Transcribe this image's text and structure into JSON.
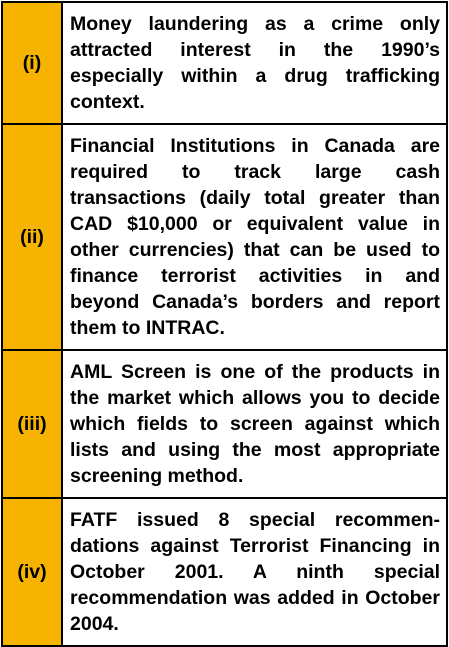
{
  "table": {
    "rows": [
      {
        "label": "(i)",
        "text": "Money laundering as a crime only attracted interest in the 1990’s especially within a drug trafficking context."
      },
      {
        "label": "(ii)",
        "text": "Financial Institutions in Canada are required to track large cash transactions (daily total greater than CAD $10,000 or equivalent value in other currencies) that can be used to finance terrorist activities in and beyond Canada’s borders and report them to INTRAC."
      },
      {
        "label": "(iii)",
        "text": "AML Screen is one of the products in the market which allows you to decide which fields to screen against which lists and using the most appropriate screening method."
      },
      {
        "label": "(iv)",
        "text": "FATF issued 8 special recommen­dations against Terrorist Financing in October 2001. A ninth special recommendation was added in October 2004."
      }
    ]
  }
}
